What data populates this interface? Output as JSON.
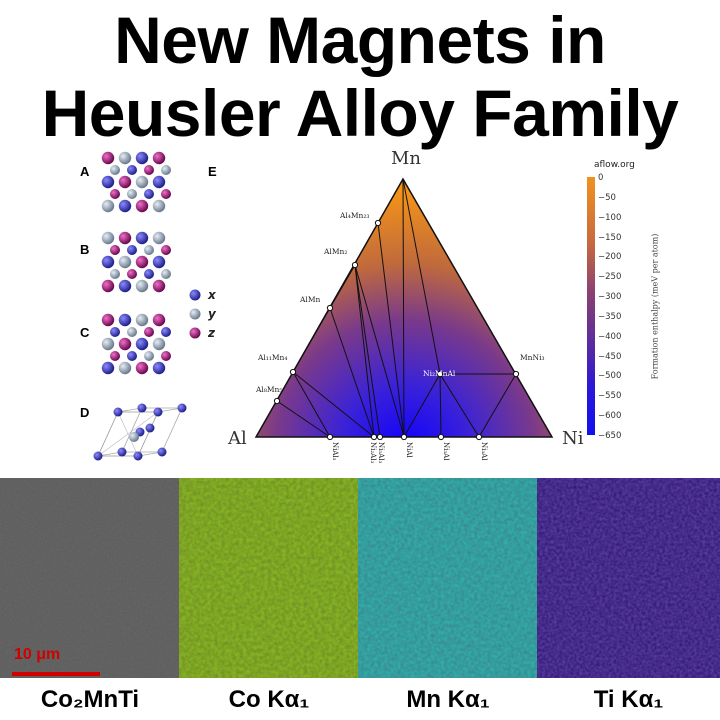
{
  "title": {
    "line1": "New Magnets in",
    "line2": "Heusler Alloy Family"
  },
  "panels": {
    "a": "A",
    "b": "B",
    "c": "C",
    "d": "D",
    "e": "E"
  },
  "legend": [
    {
      "label": "x",
      "color": "#3a3aa8"
    },
    {
      "label": "y",
      "color": "#9aaabb"
    },
    {
      "label": "z",
      "color": "#a0207a"
    }
  ],
  "phase_diagram": {
    "vertices": {
      "top": "Mn",
      "left": "Al",
      "right": "Ni"
    },
    "source": "aflow.org",
    "phase_labels": {
      "al8mn5": "Al₈Mn₅",
      "al11mn4": "Al₁₁Mn₄",
      "almn": "AlMn",
      "almn2": "AlMn₂",
      "al4mn23": "Al₄Mn₂₃",
      "ni2mnal": "Ni₂MnAl",
      "mnni3": "MnNi₃",
      "nial3": "NiAl₃",
      "ni3al2": "Ni₂Al₃",
      "ni5al3": "Ni₅Al₃",
      "nial": "NiAl",
      "ni3al": "Ni₃Al",
      "ni2al": "Ni₃Al"
    },
    "colorbar": {
      "axis_label": "Formation enthalpy (meV per atom)",
      "ticks": [
        "0",
        "−50",
        "−100",
        "−150",
        "−200",
        "−250",
        "−300",
        "−350",
        "−400",
        "−450",
        "−500",
        "−550",
        "−600",
        "−650"
      ],
      "range": [
        0,
        -650
      ],
      "top_color": "#f0921e",
      "bottom_color": "#1010f0"
    }
  },
  "maps": [
    {
      "label": "Co₂MnTi",
      "color": "#5a5a5a"
    },
    {
      "label": "Co Kα₁",
      "color": "#88b520"
    },
    {
      "label": "Mn Kα₁",
      "color": "#28a8a8"
    },
    {
      "label": "Ti Kα₁",
      "color": "#3a1a8a"
    }
  ],
  "scalebar": {
    "text": "10 μm",
    "color": "#d10000"
  }
}
